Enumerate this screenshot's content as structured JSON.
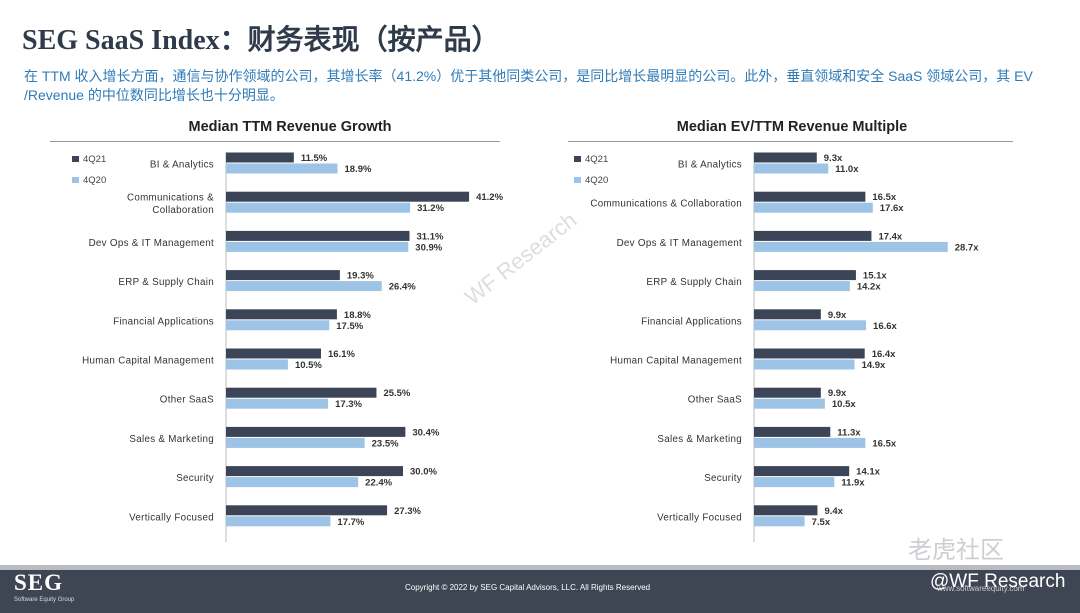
{
  "header": {
    "title": "SEG SaaS Index：财务表现（按产品）",
    "subtitle": "在 TTM 收入增长方面，通信与协作领域的公司，其增长率（41.2%）优于其他同类公司，是同比增长最明显的公司。此外，垂直领域和安全 SaaS 领域公司，其 EV /Revenue 的中位数同比增长也十分明显。"
  },
  "colors": {
    "series_4Q21": "#3b4557",
    "series_4Q20": "#9dc3e6",
    "text": "#333333",
    "subtitle": "#2f7bb8"
  },
  "chart_data": [
    {
      "type": "bar",
      "orientation": "horizontal",
      "title": "Median TTM Revenue Growth",
      "categories": [
        "BI & Analytics",
        "Communications & Collaboration",
        "Dev Ops & IT Management",
        "ERP & Supply Chain",
        "Financial Applications",
        "Human Capital Management",
        "Other SaaS",
        "Sales & Marketing",
        "Security",
        "Vertically Focused"
      ],
      "category_labels": [
        [
          "BI & Analytics"
        ],
        [
          "Communications &",
          "Collaboration"
        ],
        [
          "Dev Ops & IT Management"
        ],
        [
          "ERP & Supply Chain"
        ],
        [
          "Financial Applications"
        ],
        [
          "Human Capital Management"
        ],
        [
          "Other SaaS"
        ],
        [
          "Sales & Marketing"
        ],
        [
          "Security"
        ],
        [
          "Vertically Focused"
        ]
      ],
      "series": [
        {
          "name": "4Q21",
          "values": [
            11.5,
            41.2,
            31.1,
            19.3,
            18.8,
            16.1,
            25.5,
            30.4,
            30.0,
            27.3
          ],
          "labels": [
            "11.5%",
            "41.2%",
            "31.1%",
            "19.3%",
            "18.8%",
            "16.1%",
            "25.5%",
            "30.4%",
            "30.0%",
            "27.3%"
          ]
        },
        {
          "name": "4Q20",
          "values": [
            18.9,
            31.2,
            30.9,
            26.4,
            17.5,
            10.5,
            17.3,
            23.5,
            22.4,
            17.7
          ],
          "labels": [
            "18.9%",
            "31.2%",
            "30.9%",
            "26.4%",
            "17.5%",
            "10.5%",
            "17.3%",
            "23.5%",
            "22.4%",
            "17.7%"
          ]
        }
      ],
      "xlim": [
        0,
        45
      ],
      "legend": "top-left"
    },
    {
      "type": "bar",
      "orientation": "horizontal",
      "title": "Median EV/TTM Revenue Multiple",
      "categories": [
        "BI & Analytics",
        "Communications & Collaboration",
        "Dev Ops & IT Management",
        "ERP & Supply Chain",
        "Financial Applications",
        "Human Capital Management",
        "Other SaaS",
        "Sales & Marketing",
        "Security",
        "Vertically Focused"
      ],
      "category_labels": [
        [
          "BI & Analytics"
        ],
        [
          "Communications & Collaboration"
        ],
        [
          "Dev Ops & IT Management"
        ],
        [
          "ERP & Supply Chain"
        ],
        [
          "Financial Applications"
        ],
        [
          "Human Capital Management"
        ],
        [
          "Other SaaS"
        ],
        [
          "Sales & Marketing"
        ],
        [
          "Security"
        ],
        [
          "Vertically Focused"
        ]
      ],
      "series": [
        {
          "name": "4Q21",
          "values": [
            9.3,
            16.5,
            17.4,
            15.1,
            9.9,
            16.4,
            9.9,
            11.3,
            14.1,
            9.4
          ],
          "labels": [
            "9.3x",
            "16.5x",
            "17.4x",
            "15.1x",
            "9.9x",
            "16.4x",
            "9.9x",
            "11.3x",
            "14.1x",
            "9.4x"
          ]
        },
        {
          "name": "4Q20",
          "values": [
            11.0,
            17.6,
            28.7,
            14.2,
            16.6,
            14.9,
            10.5,
            16.5,
            11.9,
            7.5
          ],
          "labels": [
            "11.0x",
            "17.6x",
            "28.7x",
            "14.2x",
            "16.6x",
            "14.9x",
            "10.5x",
            "16.5x",
            "11.9x",
            "7.5x"
          ]
        }
      ],
      "xlim": [
        0,
        32
      ],
      "legend": "top-left"
    }
  ],
  "footer": {
    "logo": "SEG",
    "logo_subtitle": "Software Equity Group",
    "copyright": "Copyright © 2022 by SEG Capital Advisors, LLC. All Rights Reserved",
    "website": "www.softwareequity.com",
    "handle": "@WF Research"
  },
  "watermarks": {
    "center": "WF Research",
    "corner": "老虎社区"
  }
}
